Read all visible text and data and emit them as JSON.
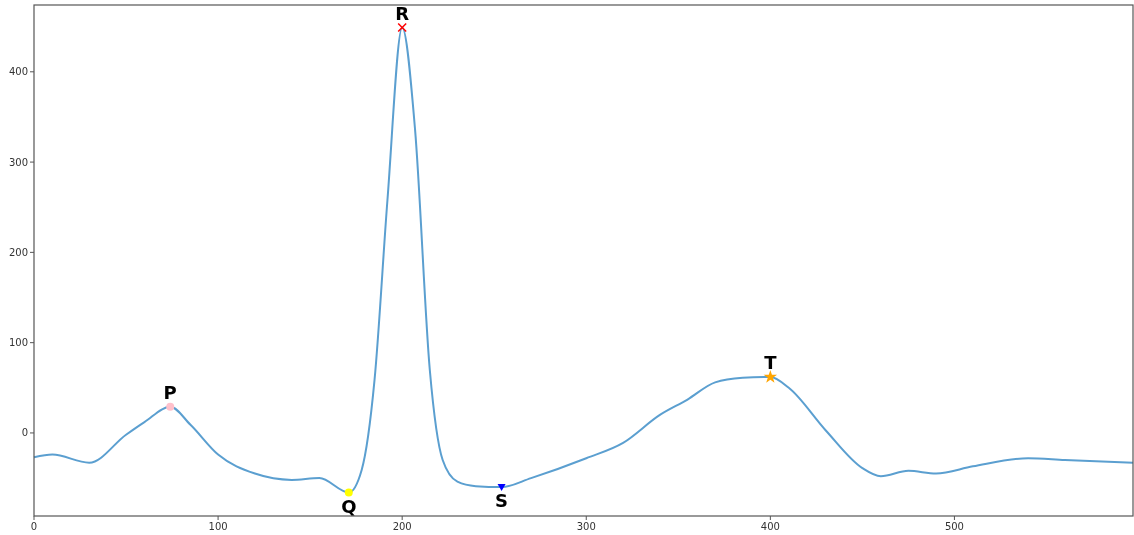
{
  "chart_data": {
    "type": "line",
    "xlim": [
      0,
      597
    ],
    "ylim": [
      -92,
      474
    ],
    "xticks": [
      0,
      100,
      200,
      300,
      400,
      500
    ],
    "yticks": [
      0,
      100,
      200,
      300,
      400
    ],
    "grid": false,
    "series": [
      {
        "color": "#5b9fd0",
        "marker": "none",
        "x": [
          0,
          10,
          30,
          50,
          60,
          74,
          85,
          100,
          120,
          140,
          155,
          171,
          178,
          185,
          192,
          200,
          207,
          215,
          222,
          230,
          240,
          254,
          270,
          300,
          320,
          340,
          355,
          370,
          385,
          400,
          410,
          430,
          450,
          460,
          475,
          490,
          510,
          540,
          560,
          597
        ],
        "values": [
          -27,
          -24,
          -33,
          -2,
          12,
          29,
          9,
          -24,
          -45,
          -52,
          -50,
          -66,
          -41,
          59,
          258,
          449,
          336,
          70,
          -30,
          -54,
          -59,
          -60,
          -50,
          -28,
          -11,
          20,
          37,
          56,
          61,
          62,
          50,
          3,
          -39,
          -48,
          -42,
          -45,
          -37,
          -28,
          -30,
          -33
        ]
      },
      {
        "type": "scatter",
        "color": "#ffc0cb",
        "marker": "circle",
        "x": [
          74
        ],
        "values": [
          29
        ]
      },
      {
        "type": "scatter",
        "color": "#ffff00",
        "marker": "circle",
        "x": [
          171
        ],
        "values": [
          -66
        ]
      },
      {
        "type": "scatter",
        "color": "#ff0000",
        "marker": "cross",
        "x": [
          200
        ],
        "values": [
          449
        ]
      },
      {
        "type": "scatter",
        "color": "#0000ff",
        "marker": "triangle",
        "x": [
          254
        ],
        "values": [
          -60
        ]
      },
      {
        "type": "scatter",
        "color": "#ffa500",
        "marker": "star",
        "x": [
          400
        ],
        "values": [
          62
        ]
      }
    ],
    "annotations": [
      {
        "text": "P",
        "x": 74,
        "y": 29
      },
      {
        "text": "Q",
        "x": 171,
        "y": -66
      },
      {
        "text": "R",
        "x": 200,
        "y": 449
      },
      {
        "text": "S",
        "x": 254,
        "y": -60
      },
      {
        "text": "T",
        "x": 400,
        "y": 62
      }
    ]
  }
}
